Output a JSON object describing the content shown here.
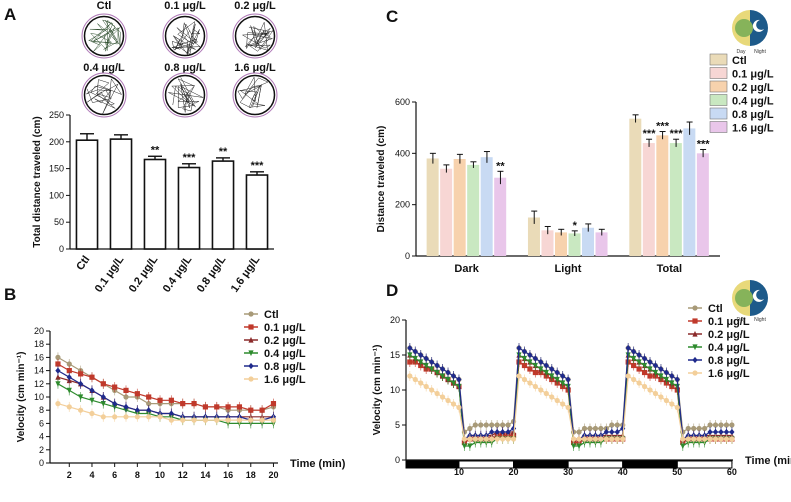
{
  "chart_data": [
    {
      "panel": "A",
      "type": "bar",
      "categories": [
        "Ctl",
        "0.1 μg/L",
        "0.2 μg/L",
        "0.4 μg/L",
        "0.8 μg/L",
        "1.6 μg/L"
      ],
      "values": [
        203,
        205,
        167,
        152,
        164,
        138
      ],
      "errors": [
        12,
        8,
        6,
        7,
        6,
        6
      ],
      "significance": [
        "",
        "",
        "**",
        "***",
        "**",
        "***"
      ],
      "title": "",
      "xlabel": "",
      "ylabel": "Total distance traveled (cm)",
      "ylim": [
        0,
        250
      ],
      "yticks": [
        0,
        50,
        100,
        150,
        200,
        250
      ],
      "grid": false,
      "trajectory_labels": [
        "Ctl",
        "0.1 μg/L",
        "0.2 μg/L",
        "0.4 μg/L",
        "0.8 μg/L",
        "1.6 μg/L"
      ]
    },
    {
      "panel": "B",
      "type": "line",
      "x": [
        1,
        2,
        3,
        4,
        5,
        6,
        7,
        8,
        9,
        10,
        11,
        12,
        13,
        14,
        15,
        16,
        17,
        18,
        19,
        20
      ],
      "xticks": [
        2,
        4,
        6,
        8,
        10,
        12,
        14,
        16,
        18,
        20
      ],
      "xlabel": "Time (min)",
      "ylabel": "Velocity (cm min⁻¹)",
      "ylim": [
        0,
        20
      ],
      "yticks": [
        0,
        2,
        4,
        6,
        8,
        10,
        12,
        14,
        16,
        18,
        20
      ],
      "legend": "right",
      "series": [
        {
          "name": "Ctl",
          "color": "#a89a78",
          "marker": "circle",
          "values": [
            16,
            15,
            14,
            13,
            12,
            11,
            10,
            10,
            9,
            9,
            9,
            9,
            9,
            8.5,
            8.5,
            8,
            8,
            8,
            8,
            8.5
          ]
        },
        {
          "name": "0.1 μg/L",
          "color": "#c0392b",
          "marker": "square",
          "values": [
            15,
            14,
            13.5,
            13,
            12,
            11.5,
            11,
            10.5,
            10,
            9.5,
            9.5,
            9,
            9,
            8.5,
            8.5,
            8.5,
            8.5,
            8,
            8,
            9
          ]
        },
        {
          "name": "0.2 μg/L",
          "color": "#8b2a2a",
          "marker": "triangle",
          "values": [
            13,
            12.5,
            12,
            11,
            10,
            9,
            8.5,
            8,
            8,
            7.5,
            7.5,
            7,
            7,
            7,
            7,
            7,
            7,
            7,
            7,
            7
          ]
        },
        {
          "name": "0.4 μg/L",
          "color": "#2e8b2e",
          "marker": "triangle-down",
          "values": [
            12,
            11,
            10,
            9.5,
            9,
            8.5,
            8,
            7.5,
            7.5,
            7,
            7,
            6.5,
            6.5,
            6.5,
            6.5,
            6,
            6,
            6,
            6,
            6
          ]
        },
        {
          "name": "0.8 μg/L",
          "color": "#1f2a8c",
          "marker": "diamond",
          "values": [
            14,
            13,
            12,
            11,
            10,
            9,
            8.5,
            8,
            8,
            7.5,
            7.5,
            7,
            7,
            7,
            7,
            7,
            7,
            6.5,
            6.5,
            7
          ]
        },
        {
          "name": "1.6 μg/L",
          "color": "#f3cf9a",
          "marker": "circle",
          "values": [
            9,
            8.5,
            8,
            7.5,
            7,
            7,
            7,
            7,
            7,
            7,
            6.5,
            6.5,
            6.5,
            6.5,
            6.5,
            6.5,
            6.5,
            6.5,
            6.5,
            6.5
          ]
        }
      ]
    },
    {
      "panel": "C",
      "type": "bar",
      "categories": [
        "Dark",
        "Light",
        "Total"
      ],
      "ylabel": "Distance traveled (cm)",
      "ylim": [
        0,
        600
      ],
      "yticks": [
        0,
        200,
        400,
        600
      ],
      "legend": "top-right",
      "legend_entries": [
        "Ctl",
        "0.1 μg/L",
        "0.2 μg/L",
        "0.4 μg/L",
        "0.8 μg/L",
        "1.6 μg/L"
      ],
      "icon_labels": [
        "Day",
        "Night"
      ],
      "series": [
        {
          "name": "Ctl",
          "color": "#eadbb8",
          "values": [
            380,
            150,
            535
          ],
          "errors": [
            20,
            25,
            15
          ],
          "significance": [
            "",
            "",
            ""
          ]
        },
        {
          "name": "0.1 μg/L",
          "color": "#f7d6d4",
          "values": [
            340,
            100,
            440
          ],
          "errors": [
            15,
            15,
            15
          ],
          "significance": [
            "",
            "",
            "***"
          ]
        },
        {
          "name": "0.2 μg/L",
          "color": "#f7d2ad",
          "values": [
            378,
            92,
            470
          ],
          "errors": [
            18,
            12,
            15
          ],
          "significance": [
            "",
            "",
            "***"
          ]
        },
        {
          "name": "0.4 μg/L",
          "color": "#c9e8c1",
          "values": [
            355,
            88,
            440
          ],
          "errors": [
            12,
            10,
            15
          ],
          "significance": [
            "",
            "*",
            "***"
          ]
        },
        {
          "name": "0.8 μg/L",
          "color": "#c8daf3",
          "values": [
            385,
            110,
            497
          ],
          "errors": [
            22,
            15,
            25
          ],
          "significance": [
            "",
            "",
            ""
          ]
        },
        {
          "name": "1.6 μg/L",
          "color": "#e9c6ea",
          "values": [
            305,
            92,
            400
          ],
          "errors": [
            25,
            12,
            15
          ],
          "significance": [
            "**",
            "",
            "***"
          ]
        }
      ]
    },
    {
      "panel": "D",
      "type": "line",
      "x": [
        1,
        2,
        3,
        4,
        5,
        6,
        7,
        8,
        9,
        10,
        11,
        12,
        13,
        14,
        15,
        16,
        17,
        18,
        19,
        20,
        21,
        22,
        23,
        24,
        25,
        26,
        27,
        28,
        29,
        30,
        31,
        32,
        33,
        34,
        35,
        36,
        37,
        38,
        39,
        40,
        41,
        42,
        43,
        44,
        45,
        46,
        47,
        48,
        49,
        50,
        51,
        52,
        53,
        54,
        55,
        56,
        57,
        58,
        59,
        60
      ],
      "xticks": [
        10,
        20,
        30,
        40,
        50,
        60
      ],
      "xlabel": "Time (min)",
      "ylabel": "Velocity (cm min⁻¹)",
      "ylim": [
        0,
        20
      ],
      "yticks": [
        0,
        5,
        10,
        15,
        20
      ],
      "legend": "top-right",
      "light_dark_bar": [
        "dark",
        "light",
        "dark",
        "light",
        "dark",
        "light"
      ],
      "series": [
        {
          "name": "Ctl",
          "color": "#a89a78",
          "marker": "circle",
          "values": [
            16,
            15.5,
            15,
            14.5,
            14,
            13.5,
            13,
            12.5,
            12,
            11.5,
            4,
            4.5,
            5,
            5,
            5,
            5,
            5,
            5,
            5,
            5.5,
            16,
            15.5,
            15,
            14.5,
            14,
            13.5,
            13,
            12.5,
            12,
            11.5,
            4,
            4,
            4.5,
            4.5,
            4.5,
            4.5,
            4.5,
            5,
            5,
            5,
            16,
            15.5,
            15,
            14.5,
            14,
            13.5,
            13,
            12.5,
            12,
            11.5,
            4,
            4.5,
            4.5,
            4.5,
            4.5,
            5,
            5,
            5,
            5,
            5
          ]
        },
        {
          "name": "0.1 μg/L",
          "color": "#c0392b",
          "marker": "square",
          "values": [
            14,
            14,
            13.5,
            13,
            13,
            12.5,
            12,
            11.5,
            11,
            10.5,
            2.5,
            3,
            3,
            3,
            3,
            3,
            3.5,
            3.5,
            3.5,
            3.5,
            14,
            13.5,
            13,
            12.5,
            12.5,
            12,
            11.5,
            11,
            10.5,
            10,
            2.5,
            2.5,
            3,
            3,
            3,
            3,
            3,
            3,
            3,
            3,
            14,
            13.5,
            13,
            12.5,
            12,
            12,
            11.5,
            11,
            10.5,
            10,
            2.5,
            3,
            3,
            3,
            3,
            3,
            3,
            3,
            3,
            3
          ]
        },
        {
          "name": "0.2 μg/L",
          "color": "#8b2a2a",
          "marker": "triangle",
          "values": [
            15,
            14.5,
            14,
            13.5,
            13,
            12.5,
            12,
            11.5,
            11,
            10.5,
            3,
            3.5,
            3.5,
            3.5,
            3.5,
            3.5,
            4,
            4,
            4,
            4,
            15,
            14.5,
            14,
            13.5,
            13,
            12.5,
            12,
            11.5,
            11,
            10.5,
            3,
            3,
            3.5,
            3.5,
            3.5,
            3.5,
            3.5,
            3.5,
            3.5,
            3.5,
            15,
            14.5,
            14,
            13.5,
            13,
            12.5,
            12,
            11.5,
            11,
            10.5,
            3,
            3.5,
            3.5,
            3.5,
            3.5,
            3.5,
            3.5,
            3.5,
            3.5,
            3.5
          ]
        },
        {
          "name": "0.4 μg/L",
          "color": "#2e8b2e",
          "marker": "triangle-down",
          "values": [
            15,
            14.5,
            14,
            13.5,
            13,
            12.5,
            12,
            11.5,
            11,
            10.5,
            2,
            2,
            2.5,
            2.5,
            2.5,
            2.5,
            3,
            3,
            3,
            3,
            15,
            14.5,
            14,
            13.5,
            13,
            12.5,
            12,
            11.5,
            11,
            10.5,
            2,
            2,
            2.5,
            2.5,
            2.5,
            2.5,
            3,
            3,
            3,
            3,
            15,
            14.5,
            14,
            13.5,
            13,
            12.5,
            12,
            11.5,
            11,
            10.5,
            2,
            2.5,
            2.5,
            2.5,
            2.5,
            3,
            3,
            3,
            3,
            3
          ]
        },
        {
          "name": "0.8 μg/L",
          "color": "#1f2a8c",
          "marker": "diamond",
          "values": [
            16,
            15.5,
            15,
            14.5,
            14,
            13.5,
            13,
            12.5,
            12,
            11.5,
            3,
            3.5,
            3.5,
            3.5,
            3.5,
            4,
            4,
            4,
            4,
            4.5,
            16,
            15.5,
            15,
            14.5,
            14,
            13.5,
            13,
            12.5,
            12,
            11.5,
            3,
            3,
            3.5,
            3.5,
            3.5,
            3.5,
            4,
            4,
            4,
            4.5,
            16,
            15.5,
            15,
            14.5,
            14,
            13.5,
            13,
            12.5,
            12,
            11.5,
            3,
            3.5,
            3.5,
            3.5,
            3.5,
            4,
            4,
            4,
            4,
            4
          ]
        },
        {
          "name": "1.6 μg/L",
          "color": "#f3cf9a",
          "marker": "circle",
          "values": [
            12,
            11.5,
            11,
            10.5,
            10,
            9.5,
            9,
            8.5,
            8,
            7.5,
            3,
            3,
            3,
            3,
            3,
            3,
            3,
            3,
            3,
            3,
            12,
            11.5,
            11,
            10.5,
            10,
            9.5,
            9,
            8.5,
            8,
            7.5,
            3,
            3,
            3,
            3,
            3,
            3,
            3,
            3,
            3,
            3,
            12,
            11.5,
            11,
            10.5,
            10,
            9.5,
            9,
            8.5,
            8,
            7.5,
            3,
            3,
            3,
            3,
            3,
            3,
            3,
            3,
            3,
            3
          ]
        }
      ]
    }
  ],
  "panel_labels": [
    "A",
    "B",
    "C",
    "D"
  ]
}
